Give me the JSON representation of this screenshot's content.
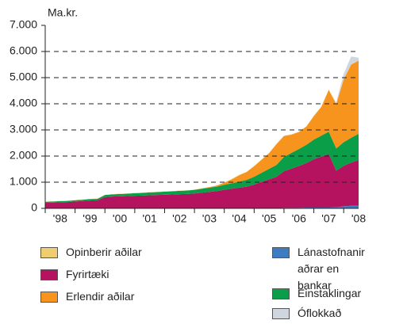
{
  "chart_data": {
    "type": "stacked-area",
    "y_label": "Ma.kr.",
    "categories": [
      "'98",
      null,
      null,
      null,
      "'99",
      null,
      null,
      null,
      "'00",
      null,
      null,
      null,
      "'01",
      null,
      null,
      null,
      "'02",
      null,
      null,
      null,
      "'03",
      null,
      null,
      null,
      "'04",
      null,
      null,
      null,
      "'05",
      null,
      null,
      null,
      "'06",
      null,
      null,
      null,
      "'07",
      null,
      null,
      null,
      "'08",
      null,
      null
    ],
    "ylim": [
      0,
      7000
    ],
    "yticks": [
      0,
      {
        "value": 1000,
        "label": "1.000"
      },
      {
        "value": 2000,
        "label": "2.000"
      },
      {
        "value": 3000,
        "label": "3.000"
      },
      {
        "value": 4000,
        "label": "4.000"
      },
      {
        "value": 5000,
        "label": "5.000"
      },
      {
        "value": 6000,
        "label": "6.000"
      },
      {
        "value": 7000,
        "label": "7.000"
      }
    ],
    "grid": true,
    "series": [
      {
        "name": "Lánastofnanir aðrar en bankar",
        "color": "#3e7cc2",
        "values": [
          10,
          10,
          10,
          10,
          10,
          10,
          10,
          10,
          10,
          10,
          10,
          10,
          10,
          10,
          10,
          10,
          10,
          10,
          10,
          10,
          10,
          10,
          10,
          10,
          10,
          10,
          10,
          10,
          10,
          10,
          10,
          10,
          20,
          20,
          20,
          30,
          30,
          30,
          30,
          40,
          80,
          100,
          100
        ]
      },
      {
        "name": "Fyrirtæki",
        "color": "#b5135f",
        "values": [
          200,
          210,
          220,
          230,
          250,
          270,
          290,
          300,
          420,
          440,
          450,
          460,
          470,
          480,
          490,
          500,
          510,
          520,
          530,
          540,
          560,
          590,
          620,
          650,
          700,
          740,
          780,
          820,
          900,
          1000,
          1100,
          1200,
          1400,
          1500,
          1600,
          1700,
          1850,
          1950,
          2050,
          1400,
          1550,
          1650,
          1750
        ]
      },
      {
        "name": "Einstaklingar",
        "color": "#0a9e48",
        "values": [
          40,
          40,
          45,
          45,
          50,
          50,
          55,
          55,
          80,
          85,
          90,
          90,
          100,
          100,
          110,
          110,
          120,
          120,
          130,
          130,
          140,
          150,
          160,
          170,
          190,
          210,
          230,
          260,
          300,
          350,
          400,
          450,
          550,
          600,
          650,
          700,
          750,
          800,
          850,
          850,
          900,
          950,
          1000
        ]
      },
      {
        "name": "Erlendir aðilar",
        "color": "#f7941d",
        "values": [
          0,
          0,
          0,
          0,
          0,
          0,
          0,
          0,
          0,
          0,
          0,
          0,
          0,
          0,
          0,
          0,
          0,
          0,
          0,
          0,
          0,
          10,
          20,
          40,
          80,
          150,
          250,
          300,
          400,
          500,
          600,
          800,
          800,
          700,
          650,
          700,
          900,
          1100,
          1600,
          1700,
          2400,
          2800,
          2800
        ]
      },
      {
        "name": "Opinberir aðilar",
        "color": "#f0cd70",
        "values": [
          10,
          10,
          10,
          10,
          10,
          10,
          10,
          10,
          10,
          10,
          10,
          10,
          10,
          10,
          10,
          10,
          10,
          10,
          10,
          10,
          10,
          10,
          10,
          10,
          10,
          10,
          10,
          10,
          10,
          10,
          10,
          10,
          10,
          10,
          10,
          10,
          10,
          10,
          10,
          10,
          10,
          10,
          10
        ]
      },
      {
        "name": "Óflokkað",
        "color": "#d0d6e0",
        "values": [
          0,
          0,
          0,
          0,
          0,
          0,
          0,
          0,
          0,
          0,
          0,
          0,
          0,
          0,
          0,
          0,
          0,
          0,
          0,
          0,
          0,
          0,
          0,
          0,
          0,
          0,
          0,
          0,
          0,
          0,
          0,
          0,
          0,
          0,
          0,
          0,
          0,
          0,
          0,
          50,
          200,
          300,
          100
        ]
      }
    ]
  }
}
